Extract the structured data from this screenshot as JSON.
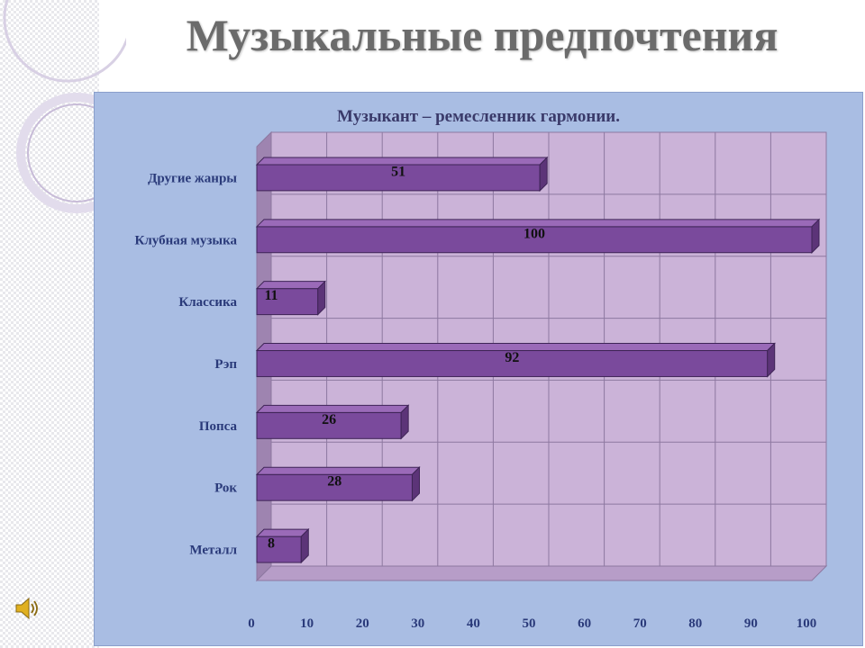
{
  "slide": {
    "title": "Музыкальные предпочтения"
  },
  "icons": {
    "speaker": "speaker-icon"
  },
  "colors": {
    "bar": "#7a4a9c",
    "bar_top": "#9a6ab8",
    "bar_side": "#5c3478",
    "plot_back": "#cbb3d8",
    "plot_wall": "#9e84b0",
    "plot_floor": "#b79dc8",
    "panel": "#a9bde3",
    "title_gray": "#6b6b6b"
  },
  "chart_data": {
    "type": "bar",
    "orientation": "horizontal",
    "style": "3d",
    "title": "Музыкант – ремесленник гармонии.",
    "categories": [
      "Металл",
      "Рок",
      "Попса",
      "Рэп",
      "Классика",
      "Клубная музыка",
      "Другие жанры"
    ],
    "values": [
      8,
      28,
      26,
      92,
      11,
      100,
      51
    ],
    "data_labels": [
      "8",
      "28",
      "26",
      "92",
      "11",
      "100",
      "51"
    ],
    "xlim": [
      0,
      100
    ],
    "xticks": [
      "0",
      "10",
      "20",
      "30",
      "40",
      "50",
      "60",
      "70",
      "80",
      "90",
      "100"
    ],
    "grid": true,
    "legend": "none"
  }
}
